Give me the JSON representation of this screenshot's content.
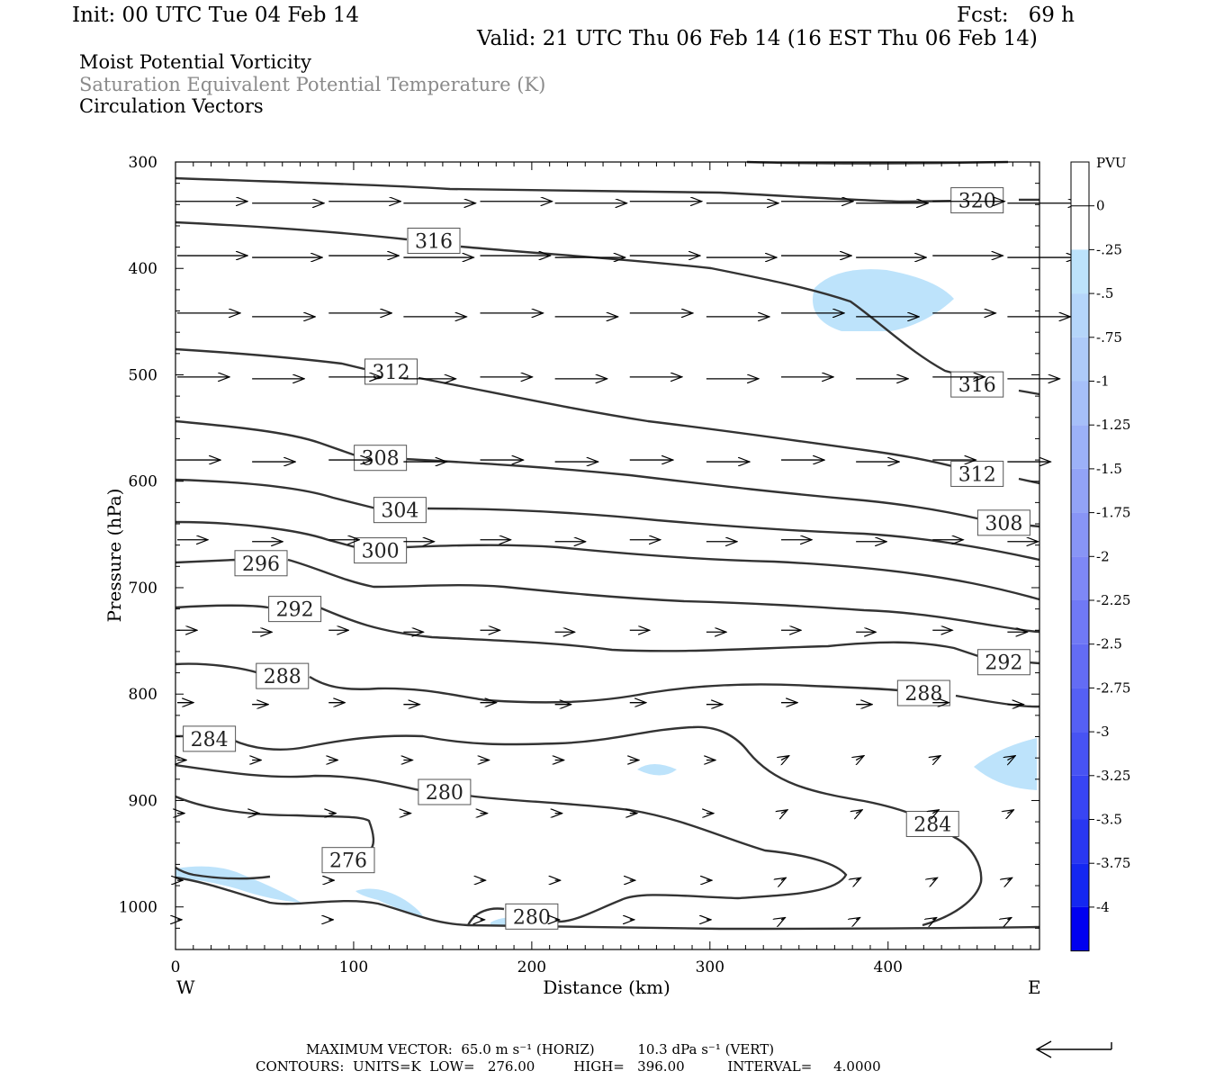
{
  "header": {
    "init": "Init: 00 UTC Tue 04 Feb 14",
    "fcst": "Fcst:   69 h",
    "valid": "Valid: 21 UTC Thu 06 Feb 14 (16 EST Thu 06 Feb 14)",
    "title1": "Moist Potential Vorticity",
    "title2": "Saturation Equivalent Potential Temperature (K)",
    "title3": "Circulation Vectors"
  },
  "footer": {
    "max_vector": "MAXIMUM VECTOR:  65.0 m s⁻¹ (HORIZ)          10.3 dPa s⁻¹ (VERT)",
    "contours": "CONTOURS:  UNITS=K  LOW=   276.00         HIGH=   396.00          INTERVAL=     4.0000"
  },
  "chart_data": {
    "type": "cross-section",
    "xlabel": "Distance (km)",
    "ylabel": "Pressure (hPa)",
    "x_ticks": [
      "0",
      "100",
      "200",
      "300",
      "400"
    ],
    "y_ticks": [
      "300",
      "400",
      "500",
      "600",
      "700",
      "800",
      "900",
      "1000"
    ],
    "xlim": [
      0,
      485
    ],
    "ylim": [
      300,
      1040
    ],
    "x_end_labels": {
      "left": "W",
      "right": "E"
    },
    "colorbar": {
      "unit": "PVU",
      "labels": [
        "0",
        "-.25",
        "-.5",
        "-.75",
        "-1",
        "-1.25",
        "-1.5",
        "-1.75",
        "-2",
        "-2.25",
        "-2.5",
        "-2.75",
        "-3",
        "-3.25",
        "-3.5",
        "-3.75",
        "-4"
      ],
      "colors": [
        "#ffffff",
        "#ffffff",
        "#bde3fb",
        "#b5d6fa",
        "#aecbf9",
        "#a6bff9",
        "#9cb1f8",
        "#92a3f7",
        "#8895f6",
        "#7e88f6",
        "#7079f5",
        "#636cf4",
        "#5560f4",
        "#4753f3",
        "#3845f3",
        "#2937f2",
        "#1427f1",
        "#0000f0"
      ]
    },
    "contour_labels": [
      {
        "value": "320",
        "x": 450,
        "p": 336
      },
      {
        "value": "316",
        "x": 145,
        "p": 374
      },
      {
        "value": "316",
        "x": 450,
        "p": 509
      },
      {
        "value": "312",
        "x": 121,
        "p": 497
      },
      {
        "value": "312",
        "x": 450,
        "p": 593
      },
      {
        "value": "308",
        "x": 115,
        "p": 578
      },
      {
        "value": "308",
        "x": 465,
        "p": 639
      },
      {
        "value": "304",
        "x": 126,
        "p": 627
      },
      {
        "value": "300",
        "x": 115,
        "p": 665
      },
      {
        "value": "296",
        "x": 48,
        "p": 677
      },
      {
        "value": "292",
        "x": 67,
        "p": 720
      },
      {
        "value": "292",
        "x": 465,
        "p": 770
      },
      {
        "value": "288",
        "x": 60,
        "p": 783
      },
      {
        "value": "288",
        "x": 420,
        "p": 799
      },
      {
        "value": "284",
        "x": 19,
        "p": 842
      },
      {
        "value": "284",
        "x": 425,
        "p": 922
      },
      {
        "value": "280",
        "x": 151,
        "p": 892
      },
      {
        "value": "280",
        "x": 200,
        "p": 1009
      },
      {
        "value": "276",
        "x": 97,
        "p": 956
      }
    ]
  }
}
